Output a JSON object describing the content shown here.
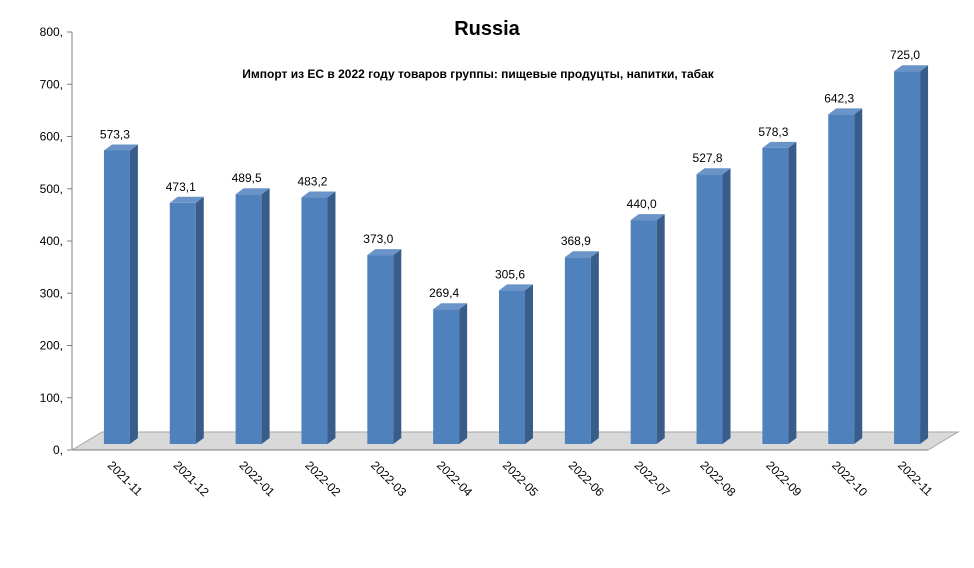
{
  "chart_data": {
    "type": "bar",
    "title": "Russia",
    "subtitle": "Импорт  из ЕС в 2022  году товаров  группы: пищевые продуцты, напитки, табак",
    "categories": [
      "2021-11",
      "2021-12",
      "2022-01",
      "2022-02",
      "2022-03",
      "2022-04",
      "2022-05",
      "2022-06",
      "2022-07",
      "2022-08",
      "2022-09",
      "2022-10",
      "2022-11"
    ],
    "values": [
      573.3,
      473.1,
      489.5,
      483.2,
      373.0,
      269.4,
      305.6,
      368.9,
      440.0,
      527.8,
      578.3,
      642.3,
      725.0
    ],
    "value_labels": [
      "573,3",
      "473,1",
      "489,5",
      "483,2",
      "373,0",
      "269,4",
      "305,6",
      "368,9",
      "440,0",
      "527,8",
      "578,3",
      "642,3",
      "725,0"
    ],
    "y_ticks": [
      "0,",
      "100,",
      "200,",
      "300,",
      "400,",
      "500,",
      "600,",
      "700,",
      "800,"
    ],
    "ylim": [
      0,
      800
    ],
    "xlabel": "",
    "ylabel": "",
    "grid": false,
    "legend": "none",
    "colors": {
      "bar_front": "#4f81bd",
      "bar_side": "#385d8a",
      "bar_top": "#6a93c8",
      "axis": "#7f7f7f",
      "floor": "#d9d9d9"
    }
  }
}
